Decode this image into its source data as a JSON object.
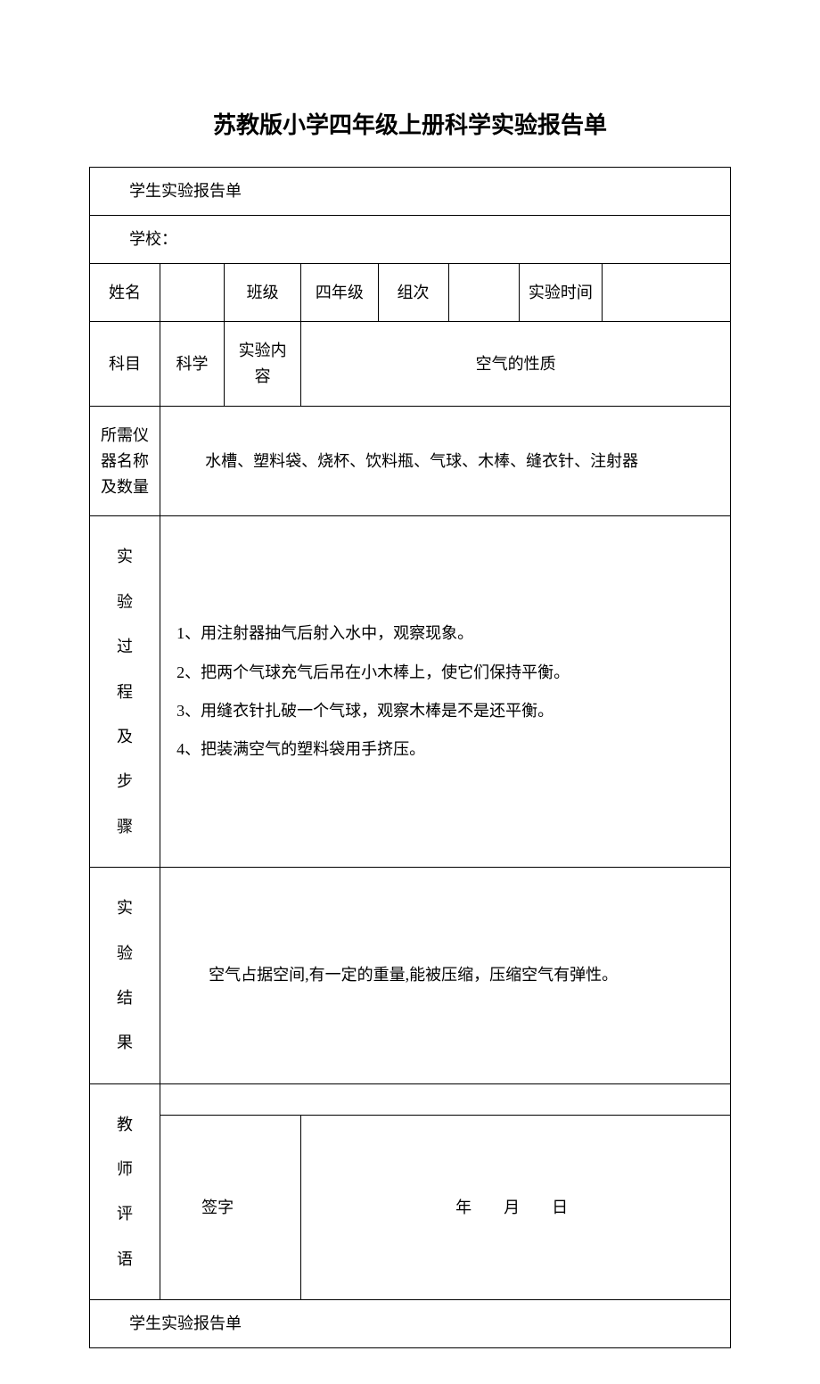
{
  "page": {
    "title": "苏教版小学四年级上册科学实验报告单",
    "background_color": "#ffffff",
    "text_color": "#000000",
    "border_color": "#000000",
    "font_family": "SimSun",
    "title_fontsize": 26,
    "body_fontsize": 18
  },
  "report_header": "学生实验报告单",
  "school": {
    "label": "学校：",
    "value": ""
  },
  "row1": {
    "name_label": "姓名",
    "name_value": "",
    "class_label": "班级",
    "class_value": "四年级",
    "group_label": "组次",
    "group_value": "",
    "time_label": "实验时间",
    "time_value": ""
  },
  "row2": {
    "subject_label": "科目",
    "subject_value": "科学",
    "content_label": "实验内容",
    "content_value": "空气的性质"
  },
  "row3": {
    "equipment_label": "所需仪器名称及数量",
    "equipment_value": "水槽、塑料袋、烧杯、饮料瓶、气球、木棒、缝衣针、注射器"
  },
  "row4": {
    "steps_label": "实\n验\n过\n程\n及\n步\n骤",
    "steps": [
      "1、用注射器抽气后射入水中，观察现象。",
      "2、把两个气球充气后吊在小木棒上，使它们保持平衡。",
      "3、用缝衣针扎破一个气球，观察木棒是不是还平衡。",
      "4、把装满空气的塑料袋用手挤压。"
    ]
  },
  "row5": {
    "result_label": "实\n验\n结\n果",
    "result_value": "空气占据空间,有一定的重量,能被压缩，压缩空气有弹性。"
  },
  "row6": {
    "comment_label": "教\n师\n评\n语",
    "signature_label": "签字",
    "date_text": "年　月　日"
  },
  "report_footer": "学生实验报告单",
  "table": {
    "col_widths": [
      "11%",
      "10%",
      "12%",
      "12%",
      "11%",
      "11%",
      "13%",
      "20%"
    ]
  }
}
